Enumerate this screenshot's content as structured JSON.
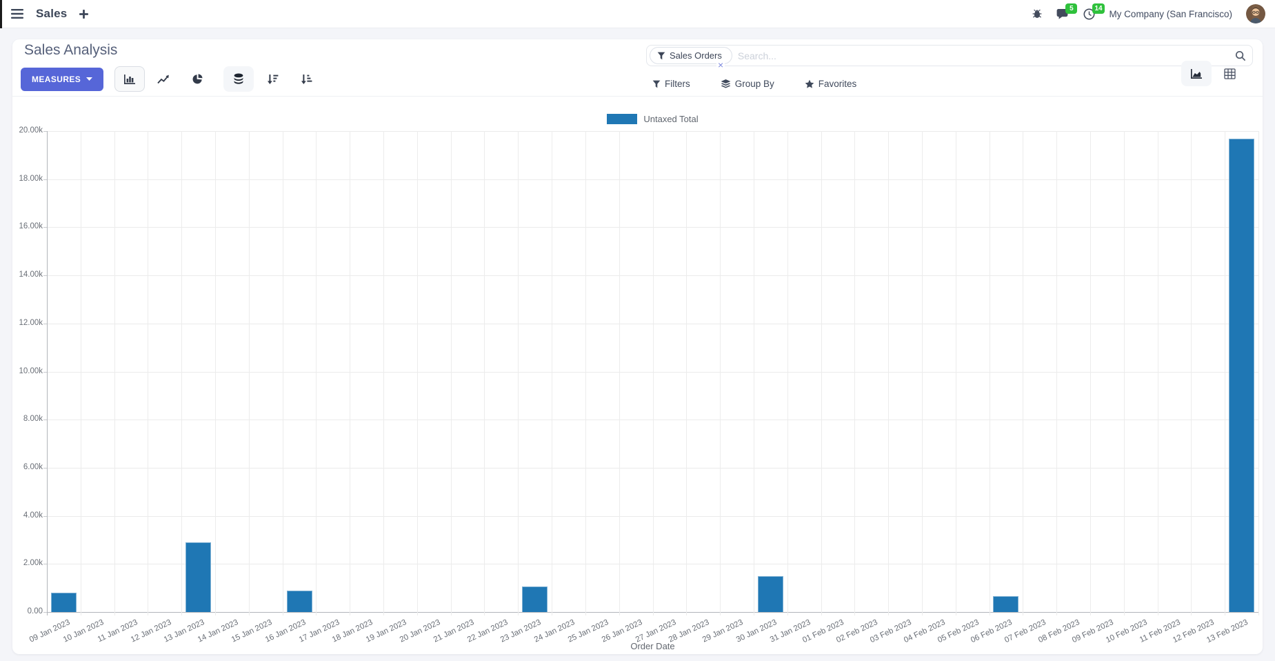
{
  "navbar": {
    "app_label": "Sales",
    "message_count": "5",
    "activity_count": "14",
    "company_name": "My Company (San Francisco)",
    "badge_color": "#2fc13c"
  },
  "control_panel": {
    "title": "Sales Analysis",
    "measures_button": "MEASURES",
    "primary_color": "#5666d8",
    "search": {
      "facet_label": "Sales Orders",
      "facet_remove": "×",
      "placeholder": "Search..."
    },
    "filters_button": "Filters",
    "group_by_button": "Group By",
    "favorites_button": "Favorites"
  },
  "chart_data": {
    "type": "bar",
    "title": "",
    "legend_position": "top",
    "grid": true,
    "legend": [
      {
        "label": "Untaxed Total",
        "color": "#1f77b4"
      }
    ],
    "categories": [
      "09 Jan 2023",
      "10 Jan 2023",
      "11 Jan 2023",
      "12 Jan 2023",
      "13 Jan 2023",
      "14 Jan 2023",
      "15 Jan 2023",
      "16 Jan 2023",
      "17 Jan 2023",
      "18 Jan 2023",
      "19 Jan 2023",
      "20 Jan 2023",
      "21 Jan 2023",
      "22 Jan 2023",
      "23 Jan 2023",
      "24 Jan 2023",
      "25 Jan 2023",
      "26 Jan 2023",
      "27 Jan 2023",
      "28 Jan 2023",
      "29 Jan 2023",
      "30 Jan 2023",
      "31 Jan 2023",
      "01 Feb 2023",
      "02 Feb 2023",
      "03 Feb 2023",
      "04 Feb 2023",
      "05 Feb 2023",
      "06 Feb 2023",
      "07 Feb 2023",
      "08 Feb 2023",
      "09 Feb 2023",
      "10 Feb 2023",
      "11 Feb 2023",
      "12 Feb 2023",
      "13 Feb 2023"
    ],
    "series": [
      {
        "name": "Untaxed Total",
        "color": "#1f77b4",
        "border_color": "#7fb1d4",
        "values": [
          800,
          0,
          0,
          0,
          2900,
          0,
          0,
          900,
          0,
          0,
          0,
          0,
          0,
          0,
          1050,
          0,
          0,
          0,
          0,
          0,
          0,
          1500,
          0,
          0,
          0,
          0,
          0,
          0,
          650,
          0,
          0,
          0,
          0,
          0,
          0,
          19700
        ]
      }
    ],
    "xlabel": "Order Date",
    "ylabel": "",
    "ylim": [
      0,
      20000
    ],
    "ytick_labels": [
      "0.00",
      "2.00k",
      "4.00k",
      "6.00k",
      "8.00k",
      "10.00k",
      "12.00k",
      "14.00k",
      "16.00k",
      "18.00k",
      "20.00k"
    ]
  }
}
